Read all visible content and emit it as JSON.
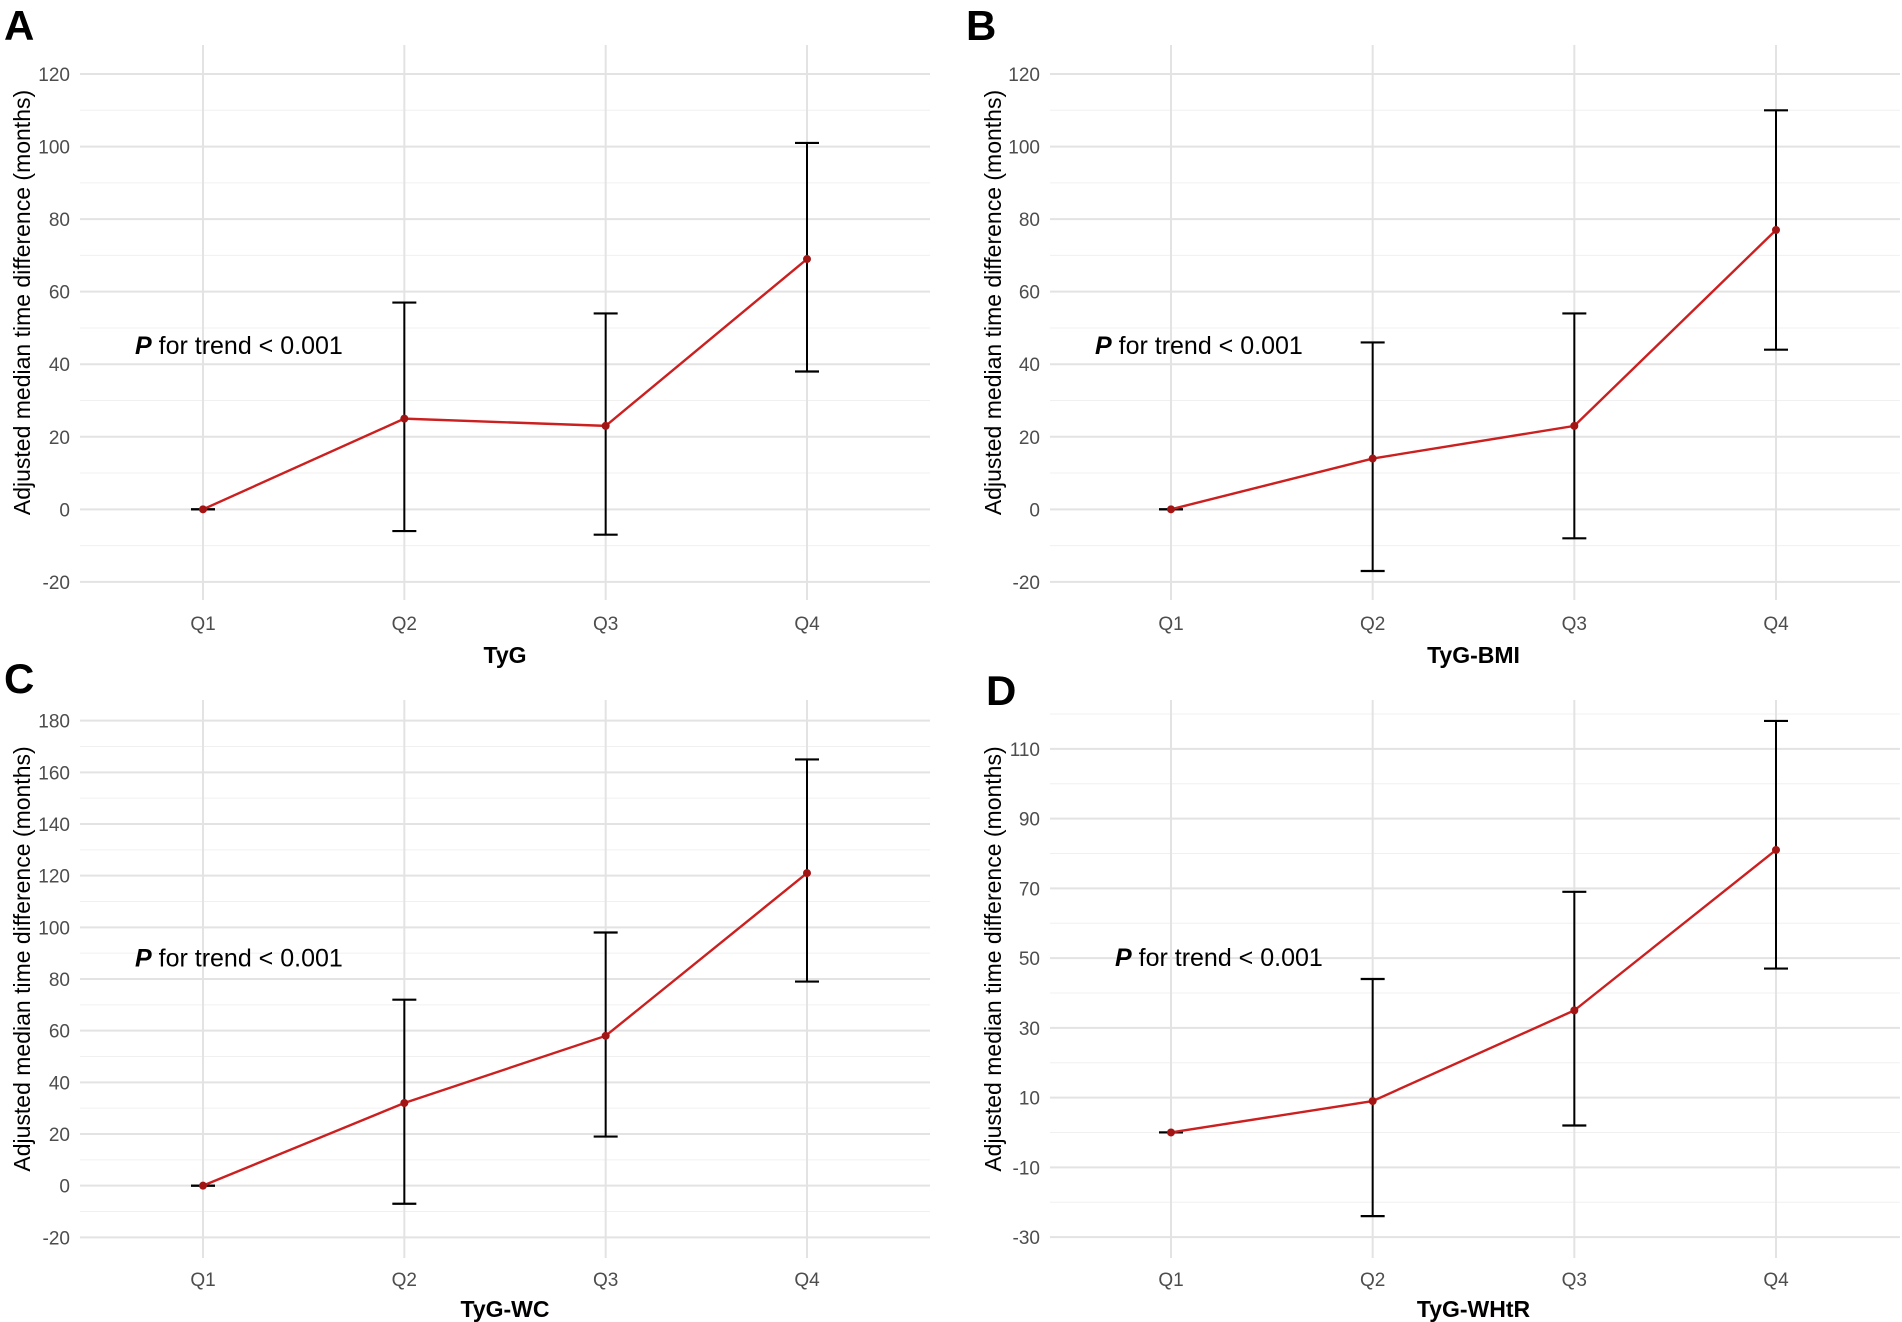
{
  "colors": {
    "line": "#cc1f1f",
    "point": "#a31515",
    "errorbar": "#000000",
    "grid_major": "#e3e3e3",
    "grid_minor": "#f0f0f0",
    "tick_text": "#4d4d4d"
  },
  "chart_data": [
    {
      "panel": "A",
      "type": "line",
      "title": "",
      "xlabel": "TyG",
      "ylabel": "Adjusted median time difference (months)",
      "categories": [
        "Q1",
        "Q2",
        "Q3",
        "Q4"
      ],
      "values": [
        0,
        25,
        23,
        69
      ],
      "lower": [
        0,
        -6,
        -7,
        38
      ],
      "upper": [
        0,
        57,
        54,
        101
      ],
      "ylim": [
        -25,
        128
      ],
      "yticks": [
        "-20",
        "0",
        "20",
        "40",
        "60",
        "80",
        "100",
        "120"
      ],
      "annotation": {
        "p": "P",
        "text": " for trend < 0.001",
        "y": 45
      }
    },
    {
      "panel": "B",
      "type": "line",
      "title": "",
      "xlabel": "TyG-BMI",
      "ylabel": "Adjusted median time difference (months)",
      "categories": [
        "Q1",
        "Q2",
        "Q3",
        "Q4"
      ],
      "values": [
        0,
        14,
        23,
        77
      ],
      "lower": [
        0,
        -17,
        -8,
        44
      ],
      "upper": [
        0,
        46,
        54,
        110
      ],
      "ylim": [
        -25,
        128
      ],
      "yticks": [
        "-20",
        "0",
        "20",
        "40",
        "60",
        "80",
        "100",
        "120"
      ],
      "annotation": {
        "p": "P",
        "text": " for trend < 0.001",
        "y": 45
      }
    },
    {
      "panel": "C",
      "type": "line",
      "title": "",
      "xlabel": "TyG-WC",
      "ylabel": "Adjusted median time difference (months)",
      "categories": [
        "Q1",
        "Q2",
        "Q3",
        "Q4"
      ],
      "values": [
        0,
        32,
        58,
        121
      ],
      "lower": [
        0,
        -7,
        19,
        79
      ],
      "upper": [
        0,
        72,
        98,
        165
      ],
      "ylim": [
        -28,
        188
      ],
      "yticks": [
        "-20",
        "0",
        "20",
        "40",
        "60",
        "80",
        "100",
        "120",
        "140",
        "160",
        "180"
      ],
      "annotation": {
        "p": "P",
        "text": " for trend < 0.001",
        "y": 88
      }
    },
    {
      "panel": "D",
      "type": "line",
      "title": "",
      "xlabel": "TyG-WHtR",
      "ylabel": "Adjusted median time difference (months)",
      "categories": [
        "Q1",
        "Q2",
        "Q3",
        "Q4"
      ],
      "values": [
        0,
        9,
        35,
        81
      ],
      "lower": [
        0,
        -24,
        2,
        47
      ],
      "upper": [
        0,
        44,
        69,
        118
      ],
      "ylim": [
        -36,
        124
      ],
      "yticks": [
        "-30",
        "-10",
        "10",
        "30",
        "50",
        "70",
        "90",
        "110"
      ],
      "annotation": {
        "p": "P",
        "text": " for trend < 0.001",
        "y": 50
      }
    }
  ]
}
